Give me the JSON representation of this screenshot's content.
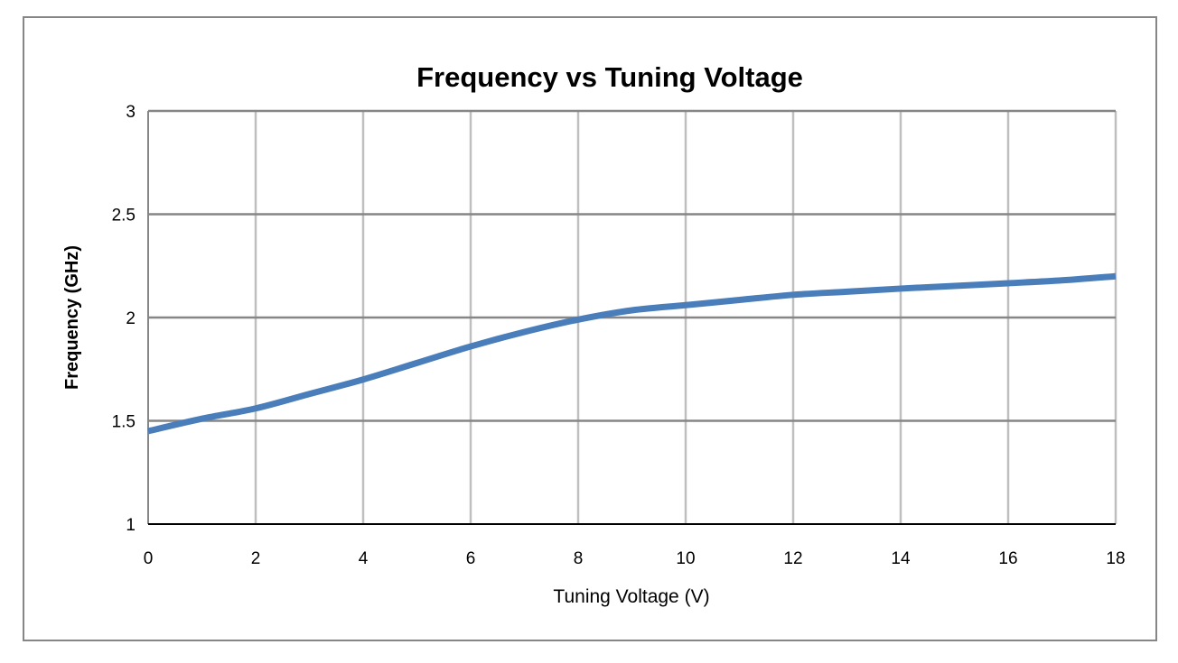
{
  "chart_data": {
    "type": "line",
    "title": "Frequency vs Tuning Voltage",
    "xlabel": "Tuning Voltage (V)",
    "ylabel": "Frequency (GHz)",
    "xlim": [
      0,
      18
    ],
    "ylim": [
      1,
      3
    ],
    "xticks": [
      0,
      2,
      4,
      6,
      8,
      10,
      12,
      14,
      16,
      18
    ],
    "yticks": [
      1,
      1.5,
      2,
      2.5,
      3
    ],
    "grid": true,
    "legend": "none",
    "series": [
      {
        "color": "#4a7ebb",
        "x": [
          0,
          1,
          2,
          3,
          4,
          5,
          6,
          7,
          8,
          9,
          10,
          11,
          12,
          13,
          14,
          15,
          16,
          17,
          18
        ],
        "y": [
          1.45,
          1.51,
          1.56,
          1.63,
          1.7,
          1.78,
          1.86,
          1.93,
          1.99,
          2.035,
          2.06,
          2.085,
          2.11,
          2.125,
          2.14,
          2.153,
          2.166,
          2.18,
          2.2
        ]
      }
    ],
    "colors": {
      "major_grid": "#868686",
      "minor_grid": "#bfbfbf",
      "frame": "#868686"
    }
  }
}
